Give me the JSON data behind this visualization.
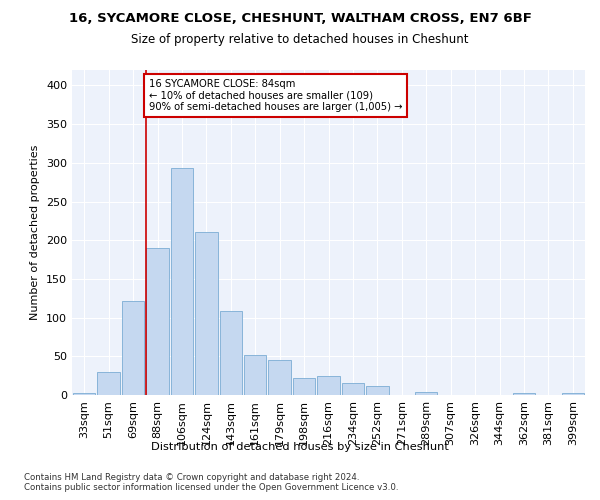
{
  "title1": "16, SYCAMORE CLOSE, CHESHUNT, WALTHAM CROSS, EN7 6BF",
  "title2": "Size of property relative to detached houses in Cheshunt",
  "xlabel": "Distribution of detached houses by size in Cheshunt",
  "ylabel": "Number of detached properties",
  "categories": [
    "33sqm",
    "51sqm",
    "69sqm",
    "88sqm",
    "106sqm",
    "124sqm",
    "143sqm",
    "161sqm",
    "179sqm",
    "198sqm",
    "216sqm",
    "234sqm",
    "252sqm",
    "271sqm",
    "289sqm",
    "307sqm",
    "326sqm",
    "344sqm",
    "362sqm",
    "381sqm",
    "399sqm"
  ],
  "values": [
    3,
    30,
    122,
    190,
    293,
    211,
    109,
    52,
    45,
    22,
    25,
    16,
    11,
    0,
    4,
    0,
    0,
    0,
    3,
    0,
    3
  ],
  "bar_color": "#c5d8f0",
  "bar_edge_color": "#7badd4",
  "vline_color": "#cc0000",
  "annotation_text": "16 SYCAMORE CLOSE: 84sqm\n← 10% of detached houses are smaller (109)\n90% of semi-detached houses are larger (1,005) →",
  "annotation_box_color": "#ffffff",
  "annotation_box_edge": "#cc0000",
  "ylim": [
    0,
    420
  ],
  "yticks": [
    0,
    50,
    100,
    150,
    200,
    250,
    300,
    350,
    400
  ],
  "footer": "Contains HM Land Registry data © Crown copyright and database right 2024.\nContains public sector information licensed under the Open Government Licence v3.0.",
  "bg_color": "#edf2fb",
  "fig_color": "#ffffff",
  "grid_color": "#ffffff",
  "vline_x_index": 3
}
